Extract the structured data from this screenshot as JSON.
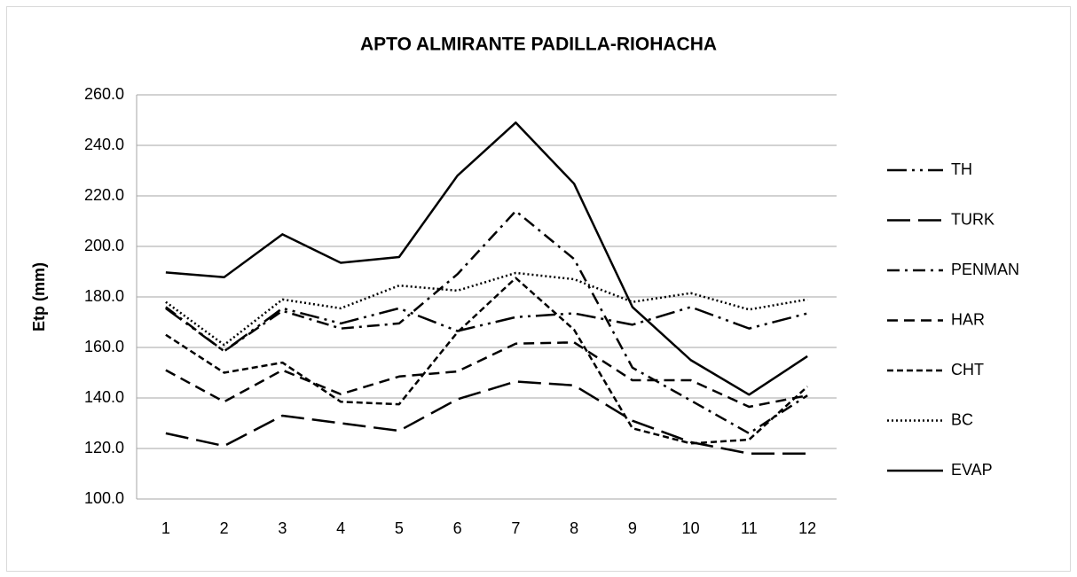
{
  "chart_data": {
    "type": "line",
    "title": "APTO ALMIRANTE PADILLA-RIOHACHA",
    "y_label": "Etp (mm)",
    "categories": [
      "1",
      "2",
      "3",
      "4",
      "5",
      "6",
      "7",
      "8",
      "9",
      "10",
      "11",
      "12"
    ],
    "ylim": [
      100,
      260
    ],
    "yticks": [
      {
        "value": 100,
        "label": "100.0"
      },
      {
        "value": 120,
        "label": "120.0"
      },
      {
        "value": 140,
        "label": "140.0"
      },
      {
        "value": 160,
        "label": "160.0"
      },
      {
        "value": 180,
        "label": "180.0"
      },
      {
        "value": 200,
        "label": "200.0"
      },
      {
        "value": 220,
        "label": "220.0"
      },
      {
        "value": 240,
        "label": "240.0"
      },
      {
        "value": 260,
        "label": "260.0"
      }
    ],
    "grid": true,
    "legend": "right",
    "series": [
      {
        "name": "TH",
        "color": "#000000",
        "values": [
          175.5,
          158.5,
          175.5,
          169.5,
          175.5,
          166.5,
          172,
          173.5,
          169,
          176,
          167.5,
          173.5
        ]
      },
      {
        "name": "TURK",
        "color": "#000000",
        "values": [
          126,
          121,
          133,
          130,
          127,
          139.5,
          146.5,
          145,
          131,
          122.5,
          118,
          118
        ]
      },
      {
        "name": "PENMAN",
        "color": "#000000",
        "values": [
          176,
          158.5,
          174.5,
          167.5,
          169.5,
          189,
          214,
          195,
          152,
          139,
          126,
          141
        ]
      },
      {
        "name": "HAR",
        "color": "#000000",
        "values": [
          151,
          138.5,
          151,
          141.5,
          148.5,
          150.5,
          161.5,
          162,
          147,
          147,
          136.5,
          141
        ]
      },
      {
        "name": "CHT",
        "color": "#000000",
        "values": [
          165,
          150,
          154,
          138.5,
          137.5,
          166,
          187.5,
          167,
          128,
          122,
          123.5,
          144.5
        ]
      },
      {
        "name": "BC",
        "color": "#000000",
        "values": [
          178,
          161,
          179,
          175.5,
          184.5,
          182.5,
          189.5,
          187,
          178,
          181.5,
          175,
          179
        ]
      },
      {
        "name": "EVAP",
        "color": "#000000",
        "values": [
          189.7,
          187.8,
          204.8,
          193.5,
          195.8,
          228,
          249,
          224.8,
          176,
          155,
          141.3,
          156.5
        ]
      }
    ]
  }
}
